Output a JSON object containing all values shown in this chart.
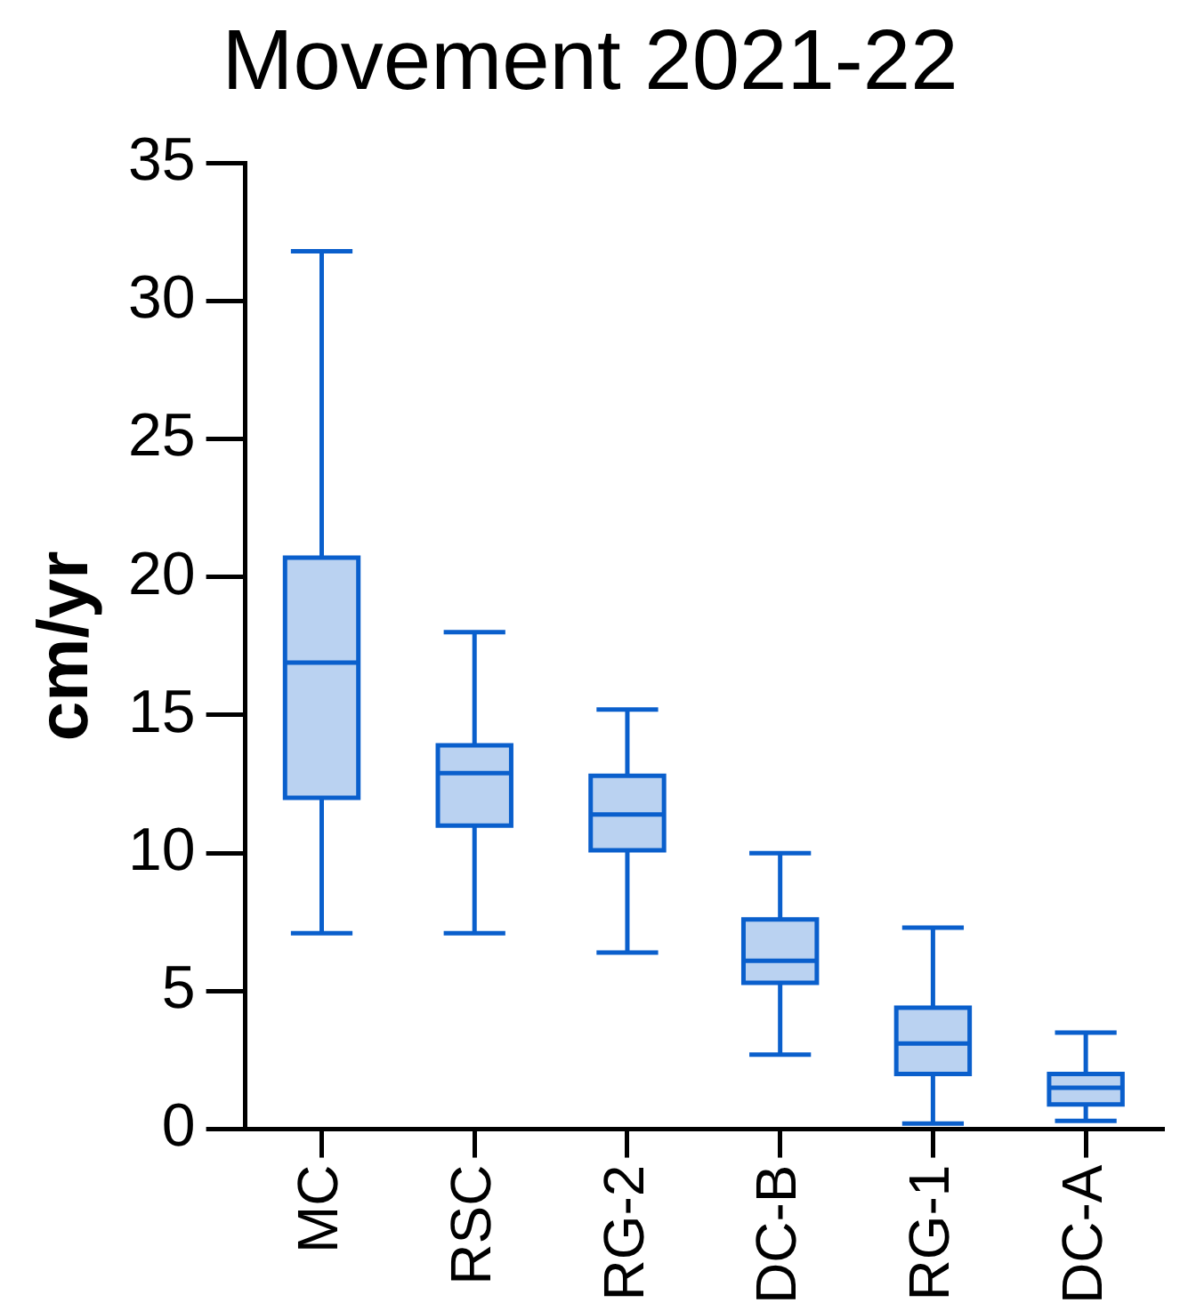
{
  "chart_data": {
    "type": "box",
    "title": "Movement 2021-22",
    "ylabel": "cm/yr",
    "categories": [
      "MC",
      "RSC",
      "RG-2",
      "DC-B",
      "RG-1",
      "DC-A"
    ],
    "color": "#0a5fcc",
    "boxes": [
      {
        "low": 7.1,
        "q1": 12.0,
        "median": 16.9,
        "q3": 20.7,
        "high": 31.8
      },
      {
        "low": 7.1,
        "q1": 11.0,
        "median": 12.9,
        "q3": 13.9,
        "high": 18.0
      },
      {
        "low": 6.4,
        "q1": 10.1,
        "median": 11.4,
        "q3": 12.8,
        "high": 15.2
      },
      {
        "low": 2.7,
        "q1": 5.3,
        "median": 6.1,
        "q3": 7.6,
        "high": 10.0
      },
      {
        "low": 0.2,
        "q1": 2.0,
        "median": 3.1,
        "q3": 4.4,
        "high": 7.3
      },
      {
        "low": 0.3,
        "q1": 0.9,
        "median": 1.5,
        "q3": 2.0,
        "high": 3.5
      }
    ],
    "ylim": [
      0,
      35
    ],
    "yticks": [
      0,
      5,
      10,
      15,
      20,
      25,
      30,
      35
    ],
    "grid": false
  }
}
